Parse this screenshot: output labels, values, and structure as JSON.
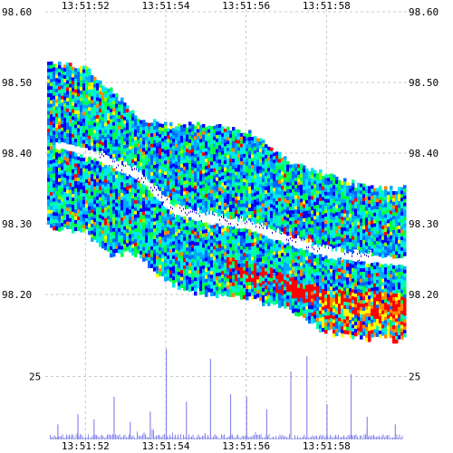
{
  "chart_data": [
    {
      "type": "heatmap",
      "title": "",
      "xlabel": "",
      "ylabel": "",
      "x_tick_labels": [
        "13:51:52",
        "13:51:54",
        "13:51:56",
        "13:51:58"
      ],
      "x_tick_values_sec": [
        2,
        4,
        6,
        8
      ],
      "xlim_sec": [
        1,
        10
      ],
      "y_tick_labels": [
        "98.60",
        "98.50",
        "98.40",
        "98.30",
        "98.20"
      ],
      "ylim": [
        98.12,
        98.6
      ],
      "grid": true,
      "color_scale": [
        "#0000ff",
        "#0066ff",
        "#00aaff",
        "#00e5ff",
        "#00ffaa",
        "#00ff44",
        "#88ff00",
        "#ffff00",
        "#ff8800",
        "#ff0000"
      ],
      "bid_ask_mid": [
        {
          "t": 1.2,
          "price": 98.415
        },
        {
          "t": 2.2,
          "price": 98.4
        },
        {
          "t": 3.3,
          "price": 98.37
        },
        {
          "t": 4.2,
          "price": 98.32
        },
        {
          "t": 5.0,
          "price": 98.31
        },
        {
          "t": 6.0,
          "price": 98.3
        },
        {
          "t": 7.0,
          "price": 98.28
        },
        {
          "t": 8.0,
          "price": 98.26
        },
        {
          "t": 9.5,
          "price": 98.25
        }
      ],
      "book_columns": [
        {
          "t": 1.0,
          "top": 98.53,
          "bottom": 98.3
        },
        {
          "t": 2.0,
          "top": 98.52,
          "bottom": 98.29
        },
        {
          "t": 2.6,
          "top": 98.49,
          "bottom": 98.26
        },
        {
          "t": 3.3,
          "top": 98.45,
          "bottom": 98.26
        },
        {
          "t": 4.0,
          "top": 98.44,
          "bottom": 98.22
        },
        {
          "t": 5.0,
          "top": 98.44,
          "bottom": 98.2
        },
        {
          "t": 6.0,
          "top": 98.43,
          "bottom": 98.2
        },
        {
          "t": 7.0,
          "top": 98.39,
          "bottom": 98.18
        },
        {
          "t": 8.0,
          "top": 98.37,
          "bottom": 98.15
        },
        {
          "t": 9.0,
          "top": 98.35,
          "bottom": 98.14
        },
        {
          "t": 10.0,
          "top": 98.35,
          "bottom": 98.14
        }
      ]
    },
    {
      "type": "bar",
      "title": "",
      "xlabel": "",
      "ylabel": "",
      "x_tick_labels": [
        "13:51:52",
        "13:51:54",
        "13:51:56",
        "13:51:58"
      ],
      "y_tick_labels": [
        "25"
      ],
      "ylim": [
        0,
        45
      ],
      "grid": true,
      "color": "#8a8aee",
      "volume_peaks": [
        {
          "t": 1.3,
          "value": 6
        },
        {
          "t": 1.8,
          "value": 10
        },
        {
          "t": 2.2,
          "value": 8
        },
        {
          "t": 2.7,
          "value": 17
        },
        {
          "t": 3.1,
          "value": 7
        },
        {
          "t": 3.6,
          "value": 11
        },
        {
          "t": 4.0,
          "value": 36
        },
        {
          "t": 4.5,
          "value": 15
        },
        {
          "t": 5.1,
          "value": 32
        },
        {
          "t": 5.6,
          "value": 18
        },
        {
          "t": 6.0,
          "value": 17
        },
        {
          "t": 6.5,
          "value": 12
        },
        {
          "t": 7.1,
          "value": 27
        },
        {
          "t": 7.5,
          "value": 33
        },
        {
          "t": 8.0,
          "value": 14
        },
        {
          "t": 8.6,
          "value": 26
        },
        {
          "t": 9.0,
          "value": 9
        },
        {
          "t": 9.7,
          "value": 6
        }
      ]
    }
  ]
}
